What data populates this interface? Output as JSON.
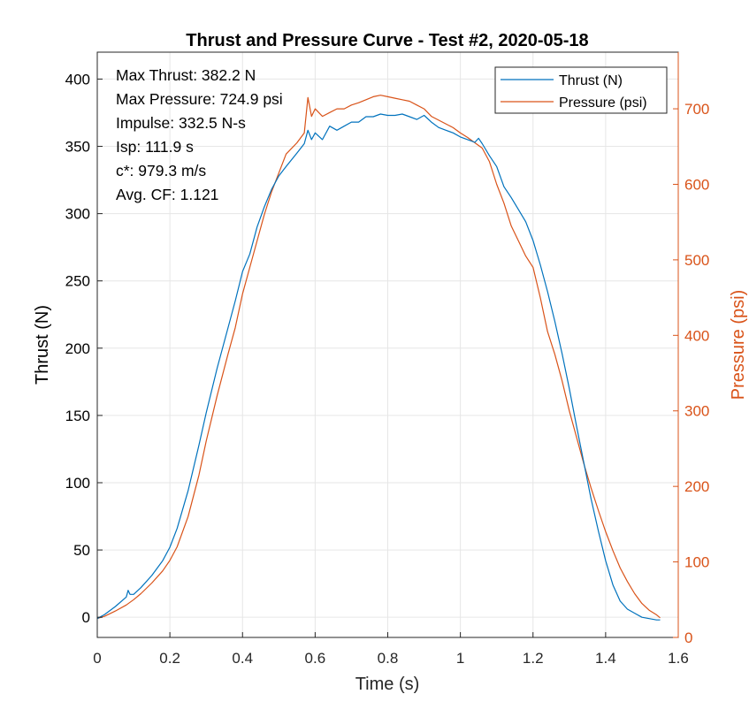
{
  "chart_data": {
    "type": "line",
    "title": "Thrust and Pressure Curve - Test #2, 2020-05-18",
    "xlabel": "Time (s)",
    "ylabel_left": "Thrust (N)",
    "ylabel_right": "Pressure (psi)",
    "xlim": [
      0,
      1.6
    ],
    "ylim_left": [
      -15,
      420
    ],
    "ylim_right": [
      0,
      775
    ],
    "xticks": [
      "0",
      "0.2",
      "0.4",
      "0.6",
      "0.8",
      "1",
      "1.2",
      "1.4",
      "1.6"
    ],
    "yticks_left": [
      "0",
      "50",
      "100",
      "150",
      "200",
      "250",
      "300",
      "350",
      "400"
    ],
    "yticks_right": [
      "0",
      "100",
      "200",
      "300",
      "400",
      "500",
      "600",
      "700"
    ],
    "grid": true,
    "legend_position": "top-right",
    "annotations": [
      "Max Thrust: 382.2 N",
      "Max Pressure: 724.9 psi",
      "Impulse: 332.5 N-s",
      "Isp: 111.9 s",
      "c*: 979.3 m/s",
      "Avg. CF: 1.121"
    ],
    "series": [
      {
        "name": "Thrust (N)",
        "axis": "left",
        "color": "#0072BD",
        "x": [
          0,
          0.02,
          0.05,
          0.08,
          0.085,
          0.09,
          0.1,
          0.12,
          0.15,
          0.18,
          0.2,
          0.22,
          0.25,
          0.28,
          0.3,
          0.33,
          0.36,
          0.38,
          0.4,
          0.42,
          0.44,
          0.46,
          0.48,
          0.5,
          0.52,
          0.55,
          0.57,
          0.58,
          0.59,
          0.6,
          0.62,
          0.64,
          0.66,
          0.68,
          0.7,
          0.72,
          0.74,
          0.76,
          0.78,
          0.8,
          0.82,
          0.84,
          0.86,
          0.88,
          0.9,
          0.92,
          0.94,
          0.96,
          0.98,
          1.0,
          1.02,
          1.04,
          1.05,
          1.06,
          1.08,
          1.1,
          1.12,
          1.14,
          1.16,
          1.18,
          1.2,
          1.22,
          1.24,
          1.26,
          1.28,
          1.3,
          1.32,
          1.34,
          1.36,
          1.38,
          1.4,
          1.42,
          1.44,
          1.46,
          1.48,
          1.5,
          1.52,
          1.54,
          1.55
        ],
        "y": [
          -1,
          2,
          8,
          15,
          20,
          17,
          17,
          22,
          31,
          42,
          52,
          66,
          94,
          128,
          152,
          185,
          215,
          235,
          257,
          270,
          290,
          305,
          318,
          328,
          335,
          345,
          352,
          362,
          355,
          360,
          355,
          365,
          362,
          365,
          368,
          368,
          372,
          372,
          374,
          373,
          373,
          374,
          372,
          370,
          373,
          368,
          364,
          362,
          360,
          357,
          355,
          353,
          356,
          352,
          343,
          335,
          320,
          312,
          303,
          294,
          280,
          262,
          242,
          220,
          196,
          170,
          142,
          115,
          88,
          64,
          42,
          24,
          12,
          6,
          3,
          0,
          -1,
          -2,
          -2
        ]
      },
      {
        "name": "Pressure (psi)",
        "axis": "right",
        "color": "#D95319",
        "x": [
          0,
          0.02,
          0.05,
          0.08,
          0.1,
          0.12,
          0.15,
          0.18,
          0.2,
          0.22,
          0.25,
          0.28,
          0.3,
          0.33,
          0.36,
          0.38,
          0.4,
          0.42,
          0.44,
          0.46,
          0.48,
          0.5,
          0.52,
          0.55,
          0.57,
          0.58,
          0.59,
          0.6,
          0.62,
          0.64,
          0.66,
          0.68,
          0.7,
          0.72,
          0.74,
          0.76,
          0.78,
          0.8,
          0.82,
          0.84,
          0.86,
          0.88,
          0.9,
          0.92,
          0.94,
          0.96,
          0.98,
          1.0,
          1.02,
          1.04,
          1.06,
          1.08,
          1.1,
          1.12,
          1.14,
          1.16,
          1.18,
          1.2,
          1.22,
          1.24,
          1.26,
          1.28,
          1.3,
          1.32,
          1.34,
          1.36,
          1.38,
          1.4,
          1.42,
          1.44,
          1.46,
          1.48,
          1.5,
          1.52,
          1.54,
          1.55
        ],
        "y": [
          25,
          28,
          35,
          43,
          50,
          58,
          72,
          88,
          102,
          120,
          160,
          215,
          260,
          320,
          375,
          410,
          455,
          490,
          525,
          560,
          590,
          615,
          640,
          655,
          668,
          715,
          690,
          700,
          690,
          695,
          700,
          700,
          705,
          708,
          712,
          716,
          718,
          716,
          714,
          712,
          710,
          705,
          700,
          690,
          685,
          680,
          675,
          668,
          662,
          655,
          648,
          630,
          600,
          575,
          545,
          525,
          505,
          490,
          450,
          405,
          375,
          340,
          300,
          265,
          230,
          198,
          168,
          140,
          115,
          92,
          74,
          58,
          45,
          36,
          30,
          26
        ]
      }
    ]
  }
}
